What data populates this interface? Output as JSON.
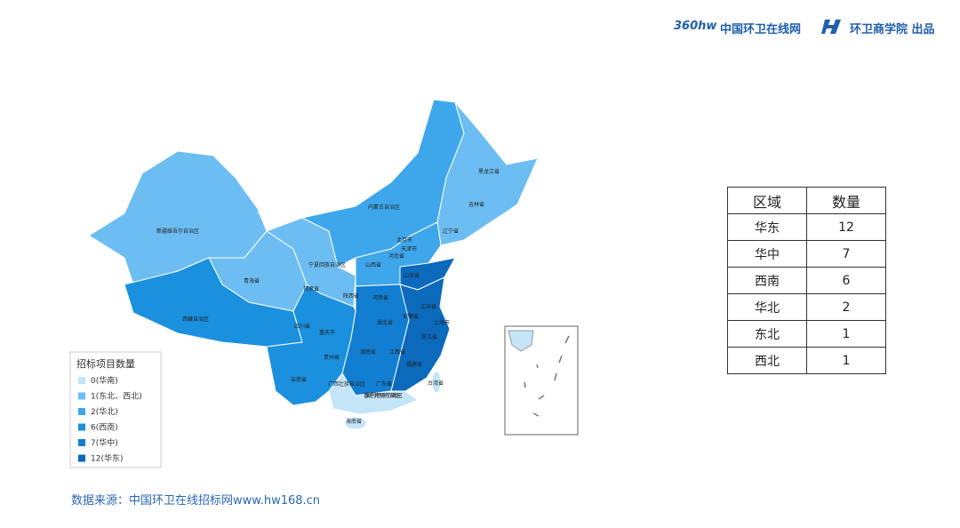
{
  "header": {
    "logo": "360hw",
    "site": "中国环卫在线网",
    "brand": "环卫商学院 出品"
  },
  "map": {
    "provinces": [
      "新疆维吾尔自治区",
      "西藏自治区",
      "青海省",
      "甘肃省",
      "宁夏回族自治区",
      "内蒙古自治区",
      "黑龙江省",
      "吉林省",
      "辽宁省",
      "北京市",
      "天津市",
      "河北省",
      "山西省",
      "陕西省",
      "山东省",
      "河南省",
      "江苏省",
      "安徽省",
      "上海市",
      "四川省",
      "重庆市",
      "湖北省",
      "浙江省",
      "贵州省",
      "湖南省",
      "江西省",
      "福建省",
      "云南省",
      "广西壮族自治区",
      "广东省",
      "台湾省",
      "香港特别行政区",
      "澳门特别行政区",
      "海南省"
    ]
  },
  "legend": {
    "title": "招标项目数量",
    "items": [
      {
        "label": "0(华南)",
        "color": "#c4e4f8"
      },
      {
        "label": "1(东北、西北)",
        "color": "#6cbdf2"
      },
      {
        "label": "2(华北)",
        "color": "#3ea7ec"
      },
      {
        "label": "6(西南)",
        "color": "#1b90df"
      },
      {
        "label": "7(华中)",
        "color": "#127ed2"
      },
      {
        "label": "12(华东)",
        "color": "#0b6abc"
      }
    ]
  },
  "table": {
    "columns": [
      "区域",
      "数量"
    ],
    "rows": [
      [
        "华东",
        12
      ],
      [
        "华中",
        7
      ],
      [
        "西南",
        6
      ],
      [
        "华北",
        2
      ],
      [
        "东北",
        1
      ],
      [
        "西北",
        1
      ]
    ]
  },
  "source": "数据来源：中国环卫在线招标网www.hw168.cn"
}
